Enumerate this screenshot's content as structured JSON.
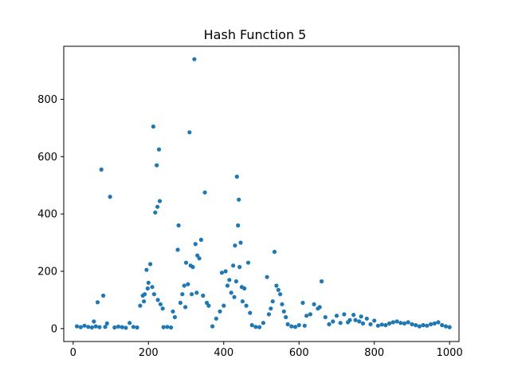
{
  "chart_data": {
    "type": "scatter",
    "title": "Hash Function 5",
    "xlabel": "",
    "ylabel": "",
    "xlim": [
      -25,
      1025
    ],
    "ylim": [
      -45,
      985
    ],
    "xticks": [
      0,
      200,
      400,
      600,
      800,
      1000
    ],
    "yticks": [
      0,
      200,
      400,
      600,
      800
    ],
    "grid": false,
    "point_color": "#1f77b4",
    "series": [
      {
        "points": [
          [
            75,
            555
          ],
          [
            98,
            460
          ],
          [
            65,
            92
          ],
          [
            80,
            115
          ],
          [
            55,
            25
          ],
          [
            90,
            18
          ],
          [
            213,
            705
          ],
          [
            222,
            570
          ],
          [
            228,
            625
          ],
          [
            230,
            445
          ],
          [
            218,
            405
          ],
          [
            224,
            425
          ],
          [
            185,
            115
          ],
          [
            190,
            120
          ],
          [
            195,
            205
          ],
          [
            200,
            160
          ],
          [
            205,
            225
          ],
          [
            210,
            145
          ],
          [
            178,
            80
          ],
          [
            188,
            95
          ],
          [
            198,
            140
          ],
          [
            215,
            120
          ],
          [
            225,
            100
          ],
          [
            232,
            85
          ],
          [
            238,
            70
          ],
          [
            309,
            685
          ],
          [
            322,
            940
          ],
          [
            350,
            475
          ],
          [
            280,
            360
          ],
          [
            278,
            275
          ],
          [
            300,
            230
          ],
          [
            318,
            215
          ],
          [
            325,
            295
          ],
          [
            330,
            255
          ],
          [
            340,
            310
          ],
          [
            295,
            150
          ],
          [
            305,
            155
          ],
          [
            312,
            220
          ],
          [
            335,
            245
          ],
          [
            290,
            120
          ],
          [
            315,
            120
          ],
          [
            345,
            115
          ],
          [
            265,
            60
          ],
          [
            270,
            40
          ],
          [
            285,
            90
          ],
          [
            298,
            75
          ],
          [
            328,
            125
          ],
          [
            355,
            90
          ],
          [
            360,
            80
          ],
          [
            435,
            530
          ],
          [
            440,
            450
          ],
          [
            438,
            360
          ],
          [
            445,
            300
          ],
          [
            430,
            290
          ],
          [
            442,
            215
          ],
          [
            465,
            230
          ],
          [
            395,
            195
          ],
          [
            405,
            200
          ],
          [
            415,
            170
          ],
          [
            425,
            220
          ],
          [
            433,
            165
          ],
          [
            448,
            145
          ],
          [
            455,
            140
          ],
          [
            410,
            150
          ],
          [
            420,
            125
          ],
          [
            428,
            110
          ],
          [
            450,
            95
          ],
          [
            460,
            80
          ],
          [
            400,
            80
          ],
          [
            390,
            60
          ],
          [
            470,
            55
          ],
          [
            380,
            35
          ],
          [
            535,
            268
          ],
          [
            515,
            180
          ],
          [
            540,
            150
          ],
          [
            545,
            135
          ],
          [
            550,
            120
          ],
          [
            530,
            95
          ],
          [
            555,
            85
          ],
          [
            525,
            70
          ],
          [
            560,
            60
          ],
          [
            520,
            50
          ],
          [
            565,
            40
          ],
          [
            660,
            165
          ],
          [
            640,
            85
          ],
          [
            650,
            70
          ],
          [
            655,
            75
          ],
          [
            630,
            50
          ],
          [
            670,
            40
          ],
          [
            610,
            90
          ],
          [
            620,
            45
          ],
          [
            700,
            45
          ],
          [
            720,
            50
          ],
          [
            745,
            48
          ],
          [
            765,
            42
          ],
          [
            690,
            25
          ],
          [
            735,
            30
          ],
          [
            780,
            35
          ],
          [
            800,
            28
          ],
          [
            10,
            8
          ],
          [
            20,
            5
          ],
          [
            30,
            10
          ],
          [
            40,
            6
          ],
          [
            50,
            4
          ],
          [
            60,
            8
          ],
          [
            70,
            5
          ],
          [
            85,
            6
          ],
          [
            110,
            4
          ],
          [
            120,
            7
          ],
          [
            130,
            5
          ],
          [
            140,
            3
          ],
          [
            150,
            20
          ],
          [
            160,
            6
          ],
          [
            170,
            4
          ],
          [
            240,
            5
          ],
          [
            250,
            6
          ],
          [
            260,
            4
          ],
          [
            370,
            8
          ],
          [
            475,
            12
          ],
          [
            485,
            6
          ],
          [
            495,
            5
          ],
          [
            505,
            20
          ],
          [
            570,
            15
          ],
          [
            580,
            8
          ],
          [
            590,
            6
          ],
          [
            600,
            12
          ],
          [
            615,
            10
          ],
          [
            680,
            15
          ],
          [
            710,
            20
          ],
          [
            730,
            22
          ],
          [
            750,
            30
          ],
          [
            760,
            25
          ],
          [
            770,
            18
          ],
          [
            790,
            15
          ],
          [
            810,
            10
          ],
          [
            820,
            14
          ],
          [
            830,
            12
          ],
          [
            840,
            18
          ],
          [
            850,
            22
          ],
          [
            860,
            25
          ],
          [
            870,
            20
          ],
          [
            880,
            18
          ],
          [
            890,
            22
          ],
          [
            900,
            15
          ],
          [
            910,
            12
          ],
          [
            920,
            8
          ],
          [
            930,
            12
          ],
          [
            940,
            10
          ],
          [
            950,
            15
          ],
          [
            960,
            18
          ],
          [
            970,
            22
          ],
          [
            980,
            12
          ],
          [
            990,
            8
          ],
          [
            1000,
            5
          ]
        ]
      }
    ]
  }
}
